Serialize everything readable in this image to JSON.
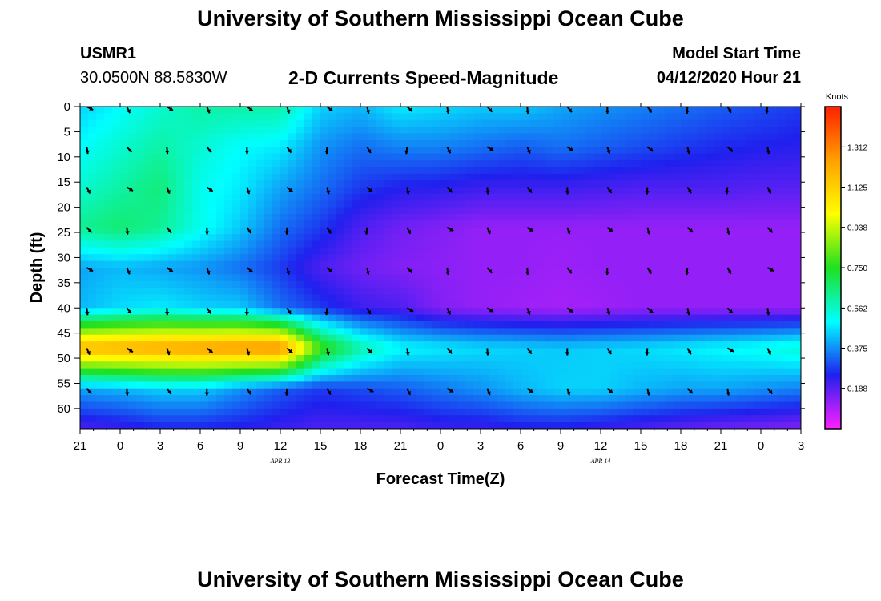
{
  "header": {
    "title": "University of Southern Mississippi Ocean Cube",
    "station_id": "USMR1",
    "coordinates": "30.0500N 88.5830W",
    "plot_title": "2-D Currents Speed-Magnitude",
    "model_start_label": "Model Start Time",
    "model_start_value": "04/12/2020 Hour 21"
  },
  "footer": {
    "title": "University of Southern Mississippi Ocean Cube"
  },
  "chart_data": {
    "type": "heatmap",
    "title": "2-D Currents Speed-Magnitude",
    "xlabel": "Forecast Time(Z)",
    "ylabel": "Depth (ft)",
    "x_ticks": [
      "21",
      "0",
      "3",
      "6",
      "9",
      "12",
      "15",
      "18",
      "21",
      "0",
      "3",
      "6",
      "9",
      "12",
      "15",
      "18",
      "21",
      "0",
      "3"
    ],
    "x_range_hours": [
      0,
      54
    ],
    "date_labels": [
      {
        "text": "APR 13",
        "hour": 15
      },
      {
        "text": "APR 14",
        "hour": 39
      }
    ],
    "y_ticks": [
      "0",
      "5",
      "10",
      "15",
      "20",
      "25",
      "30",
      "35",
      "40",
      "45",
      "50",
      "55",
      "60"
    ],
    "y_range_ft": [
      0,
      64
    ],
    "colorbar": {
      "unit": "Knots",
      "ticks": [
        "1.312",
        "1.125",
        "0.938",
        "0.750",
        "0.562",
        "0.375",
        "0.188"
      ],
      "range": [
        0,
        1.5
      ],
      "colors": [
        "#ff20ff",
        "#2020ee",
        "#00ffff",
        "#20e020",
        "#ffff00",
        "#ffa000",
        "#ff2000"
      ]
    },
    "speed_grid": {
      "hours": [
        0,
        3,
        6,
        9,
        12,
        15,
        18,
        21,
        24,
        27,
        30,
        33,
        36,
        39,
        42,
        45,
        48,
        51,
        54
      ],
      "depths_ft": [
        0,
        8,
        16,
        24,
        32,
        40,
        48,
        56,
        64
      ],
      "values": [
        [
          0.45,
          0.5,
          0.55,
          0.6,
          0.6,
          0.6,
          0.45,
          0.42,
          0.48,
          0.46,
          0.44,
          0.44,
          0.4,
          0.38,
          0.36,
          0.34,
          0.32,
          0.3,
          0.28
        ],
        [
          0.5,
          0.55,
          0.6,
          0.55,
          0.5,
          0.48,
          0.38,
          0.34,
          0.36,
          0.36,
          0.34,
          0.32,
          0.34,
          0.32,
          0.3,
          0.28,
          0.26,
          0.25,
          0.24
        ],
        [
          0.55,
          0.6,
          0.65,
          0.52,
          0.48,
          0.4,
          0.34,
          0.28,
          0.25,
          0.24,
          0.22,
          0.22,
          0.22,
          0.21,
          0.2,
          0.2,
          0.2,
          0.19,
          0.19
        ],
        [
          0.62,
          0.66,
          0.62,
          0.52,
          0.44,
          0.34,
          0.28,
          0.2,
          0.16,
          0.14,
          0.12,
          0.12,
          0.12,
          0.12,
          0.12,
          0.12,
          0.12,
          0.12,
          0.12
        ],
        [
          0.4,
          0.42,
          0.4,
          0.38,
          0.34,
          0.28,
          0.2,
          0.16,
          0.14,
          0.13,
          0.12,
          0.12,
          0.11,
          0.12,
          0.12,
          0.12,
          0.12,
          0.12,
          0.12
        ],
        [
          0.42,
          0.46,
          0.48,
          0.45,
          0.44,
          0.34,
          0.28,
          0.22,
          0.2,
          0.14,
          0.12,
          0.11,
          0.1,
          0.11,
          0.12,
          0.12,
          0.12,
          0.12,
          0.12
        ],
        [
          1.2,
          1.22,
          1.24,
          1.26,
          1.28,
          1.3,
          0.8,
          0.6,
          0.5,
          0.48,
          0.46,
          0.45,
          0.44,
          0.45,
          0.46,
          0.48,
          0.5,
          0.52,
          0.55
        ],
        [
          0.4,
          0.42,
          0.45,
          0.45,
          0.38,
          0.32,
          0.28,
          0.3,
          0.32,
          0.35,
          0.38,
          0.42,
          0.45,
          0.45,
          0.42,
          0.4,
          0.4,
          0.38,
          0.36
        ],
        [
          0.2,
          0.22,
          0.25,
          0.25,
          0.24,
          0.22,
          0.2,
          0.2,
          0.2,
          0.22,
          0.22,
          0.24,
          0.24,
          0.22,
          0.2,
          0.18,
          0.16,
          0.15,
          0.14
        ]
      ]
    }
  }
}
